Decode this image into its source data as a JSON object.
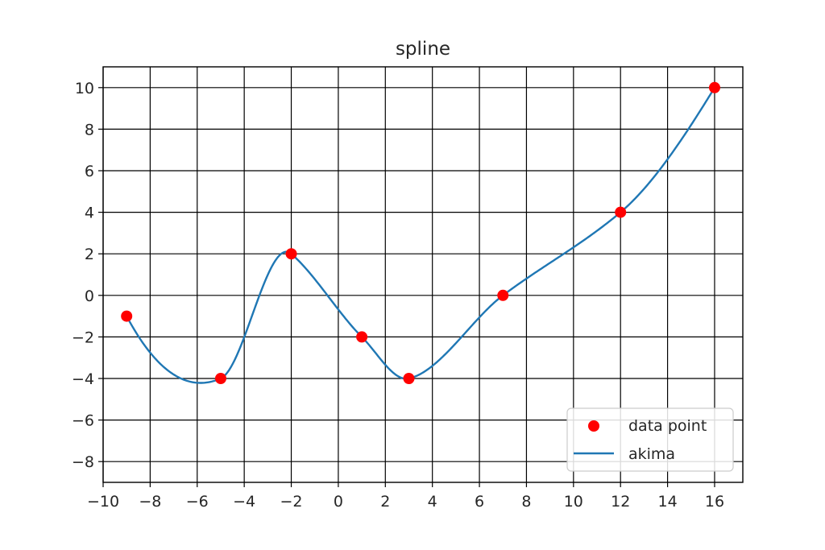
{
  "chart_data": {
    "type": "scatter",
    "title": "spline",
    "xlabel": "",
    "ylabel": "",
    "xlim": [
      -10,
      17.2
    ],
    "ylim": [
      -9,
      11
    ],
    "x_ticks": [
      -10,
      -8,
      -6,
      -4,
      -2,
      0,
      2,
      4,
      6,
      8,
      10,
      12,
      14,
      16
    ],
    "x_tick_labels": [
      "−10",
      "−8",
      "−6",
      "−4",
      "−2",
      "0",
      "2",
      "4",
      "6",
      "8",
      "10",
      "12",
      "14",
      "16"
    ],
    "y_ticks": [
      -8,
      -6,
      -4,
      -2,
      0,
      2,
      4,
      6,
      8,
      10
    ],
    "y_tick_labels": [
      "−8",
      "−6",
      "−4",
      "−2",
      "0",
      "2",
      "4",
      "6",
      "8",
      "10"
    ],
    "grid": true,
    "legend_position": "lower-right",
    "series": [
      {
        "name": "data point",
        "kind": "scatter",
        "color": "#ff0000",
        "x": [
          -9,
          -5,
          -2,
          1,
          3,
          7,
          12,
          16
        ],
        "y": [
          -1,
          -4,
          2,
          -2,
          -4,
          0,
          4,
          10
        ]
      },
      {
        "name": "akima",
        "kind": "line",
        "color": "#1f77b4",
        "x": [
          -9,
          -5,
          -2,
          1,
          3,
          7,
          12,
          16
        ],
        "y": [
          -1,
          -4,
          2,
          -2,
          -4,
          0,
          4,
          10
        ]
      }
    ]
  }
}
